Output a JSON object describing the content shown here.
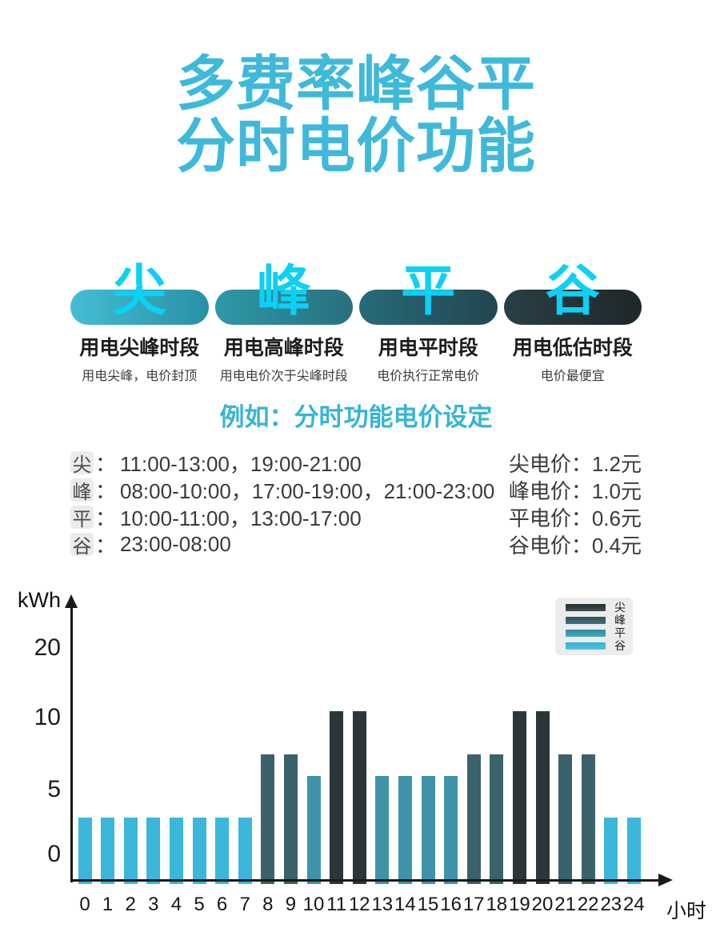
{
  "colors": {
    "title": "#3fb9da",
    "heading": "#36b4d8",
    "big_char": "#0cd0f4"
  },
  "title": {
    "line1": "多费率峰谷平",
    "line2": "分时电价功能"
  },
  "tiers": {
    "items": [
      {
        "char": "尖",
        "label": "用电尖峰时段",
        "sublabel": "用电尖峰，电价封顶",
        "grad_from": "#45bdd4",
        "grad_to": "#2990a4"
      },
      {
        "char": "峰",
        "label": "用电高峰时段",
        "sublabel": "用电电价次于尖峰时段",
        "grad_from": "#2e98a8",
        "grad_to": "#28707e"
      },
      {
        "char": "平",
        "label": "用电平时段",
        "sublabel": "电价执行正常电价",
        "grad_from": "#266b79",
        "grad_to": "#23454f"
      },
      {
        "char": "谷",
        "label": "用电低估时段",
        "sublabel": "电价最便宜",
        "grad_from": "#2a3f46",
        "grad_to": "#1e2729"
      }
    ]
  },
  "example": {
    "heading": "例如：分时功能电价设定",
    "colon": "："
  },
  "price_table": {
    "rows": [
      {
        "tier": "尖",
        "times": "11:00-13:00，19:00-21:00",
        "price": "尖电价：1.2元"
      },
      {
        "tier": "峰",
        "times": "08:00-10:00，17:00-19:00，21:00-23:00",
        "price": "峰电价：1.0元"
      },
      {
        "tier": "平",
        "times": "10:00-11:00，13:00-17:00",
        "price": "平电价：0.6元"
      },
      {
        "tier": "谷",
        "times": "23:00-08:00",
        "price": "谷电价：0.4元"
      }
    ]
  },
  "chart_data": {
    "type": "bar",
    "title": "",
    "ylabel": "kWh",
    "xlabel": "小时",
    "ylim": [
      0,
      20
    ],
    "y_ticks": [
      0,
      5,
      10,
      20
    ],
    "grid": false,
    "legend_position": "top-right",
    "categories": [
      {
        "name": "尖",
        "bar_color": "#2b3639",
        "legend_from": "#232e31",
        "legend_to": "#3f4f52"
      },
      {
        "name": "峰",
        "bar_color": "#3a626a",
        "legend_from": "#2b545b",
        "legend_to": "#45727a"
      },
      {
        "name": "平",
        "bar_color": "#3f93a9",
        "legend_from": "#2f8ba1",
        "legend_to": "#4aa9ba"
      },
      {
        "name": "谷",
        "bar_color": "#3ab7da",
        "legend_from": "#32b1d3",
        "legend_to": "#52c5e1"
      }
    ],
    "hours": [
      {
        "hour": 0,
        "value": 3.5,
        "category": "谷"
      },
      {
        "hour": 1,
        "value": 3.5,
        "category": "谷"
      },
      {
        "hour": 2,
        "value": 3.5,
        "category": "谷"
      },
      {
        "hour": 3,
        "value": 3.5,
        "category": "谷"
      },
      {
        "hour": 4,
        "value": 3.5,
        "category": "谷"
      },
      {
        "hour": 5,
        "value": 3.5,
        "category": "谷"
      },
      {
        "hour": 6,
        "value": 3.5,
        "category": "谷"
      },
      {
        "hour": 7,
        "value": 3.5,
        "category": "谷"
      },
      {
        "hour": 8,
        "value": 7.5,
        "category": "峰"
      },
      {
        "hour": 9,
        "value": 7.5,
        "category": "峰"
      },
      {
        "hour": 10,
        "value": 6,
        "category": "平"
      },
      {
        "hour": 11,
        "value": 11,
        "category": "尖"
      },
      {
        "hour": 12,
        "value": 11,
        "category": "尖"
      },
      {
        "hour": 13,
        "value": 6,
        "category": "平"
      },
      {
        "hour": 14,
        "value": 6,
        "category": "平"
      },
      {
        "hour": 15,
        "value": 6,
        "category": "平"
      },
      {
        "hour": 16,
        "value": 6,
        "category": "平"
      },
      {
        "hour": 17,
        "value": 7.5,
        "category": "峰"
      },
      {
        "hour": 18,
        "value": 7.5,
        "category": "峰"
      },
      {
        "hour": 19,
        "value": 11,
        "category": "尖"
      },
      {
        "hour": 20,
        "value": 11,
        "category": "尖"
      },
      {
        "hour": 21,
        "value": 7.5,
        "category": "峰"
      },
      {
        "hour": 22,
        "value": 7.5,
        "category": "峰"
      },
      {
        "hour": 23,
        "value": 3.5,
        "category": "谷"
      },
      {
        "hour": 24,
        "value": 3.5,
        "category": "谷"
      }
    ]
  }
}
